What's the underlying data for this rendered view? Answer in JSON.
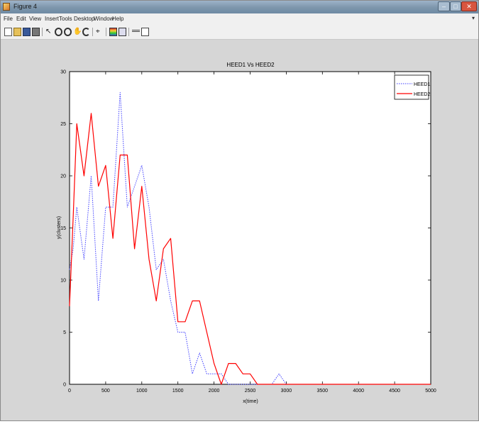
{
  "window": {
    "title": "Figure 4",
    "minimize_glyph": "–",
    "maximize_glyph": "□",
    "close_glyph": "✕"
  },
  "menu": {
    "items": [
      "File",
      "Edit",
      "View",
      "Insert",
      "Tools",
      "Desktop",
      "Window",
      "Help"
    ]
  },
  "toolbar": {
    "tools": [
      "new-file-icon",
      "open-file-icon",
      "save-icon",
      "print-icon",
      "pointer-icon",
      "zoom-in-icon",
      "zoom-out-icon",
      "pan-icon",
      "rotate-icon",
      "data-cursor-icon",
      "colorbar-icon",
      "legend-icon",
      "hide-plot-tools-icon",
      "show-plot-tools-icon"
    ]
  },
  "chart_data": {
    "type": "line",
    "title": "HEED1 Vs HEED2",
    "xlabel": "x(time)",
    "ylabel": "y(clusters)",
    "xlim": [
      0,
      5000
    ],
    "ylim": [
      0,
      30
    ],
    "xticks": [
      0,
      500,
      1000,
      1500,
      2000,
      2500,
      3000,
      3500,
      4000,
      4500,
      5000
    ],
    "yticks": [
      0,
      5,
      10,
      15,
      20,
      25,
      30
    ],
    "grid": false,
    "legend_position": "top-right",
    "series": [
      {
        "name": "HEED1",
        "color": "#4040ff",
        "style": "dotted",
        "x": [
          0,
          50,
          100,
          200,
          300,
          400,
          500,
          600,
          700,
          800,
          900,
          1000,
          1100,
          1200,
          1300,
          1400,
          1500,
          1600,
          1700,
          1800,
          1900,
          2000,
          2100,
          2200,
          2300,
          2400,
          2500,
          2600,
          2700,
          2800,
          2900,
          3000,
          5000
        ],
        "values": [
          11,
          13,
          17,
          12,
          20,
          8,
          17,
          17,
          28,
          17,
          19,
          21,
          17,
          11,
          12,
          8,
          5,
          5,
          1,
          3,
          1,
          1,
          1,
          0,
          0,
          0,
          0,
          0,
          0,
          0,
          1,
          0,
          0
        ]
      },
      {
        "name": "HEED2",
        "color": "#ff0000",
        "style": "solid",
        "x": [
          0,
          50,
          100,
          200,
          300,
          400,
          500,
          600,
          700,
          800,
          900,
          1000,
          1100,
          1200,
          1300,
          1400,
          1500,
          1600,
          1700,
          1800,
          1900,
          2000,
          2100,
          2200,
          2300,
          2400,
          2500,
          2600,
          2700,
          3000,
          5000
        ],
        "values": [
          7.5,
          16,
          25,
          20,
          26,
          19,
          21,
          14,
          22,
          22,
          13,
          19,
          12,
          8,
          13,
          14,
          6,
          6,
          8,
          8,
          5,
          2,
          0,
          2,
          2,
          1,
          1,
          0,
          0,
          0,
          0
        ]
      }
    ]
  }
}
